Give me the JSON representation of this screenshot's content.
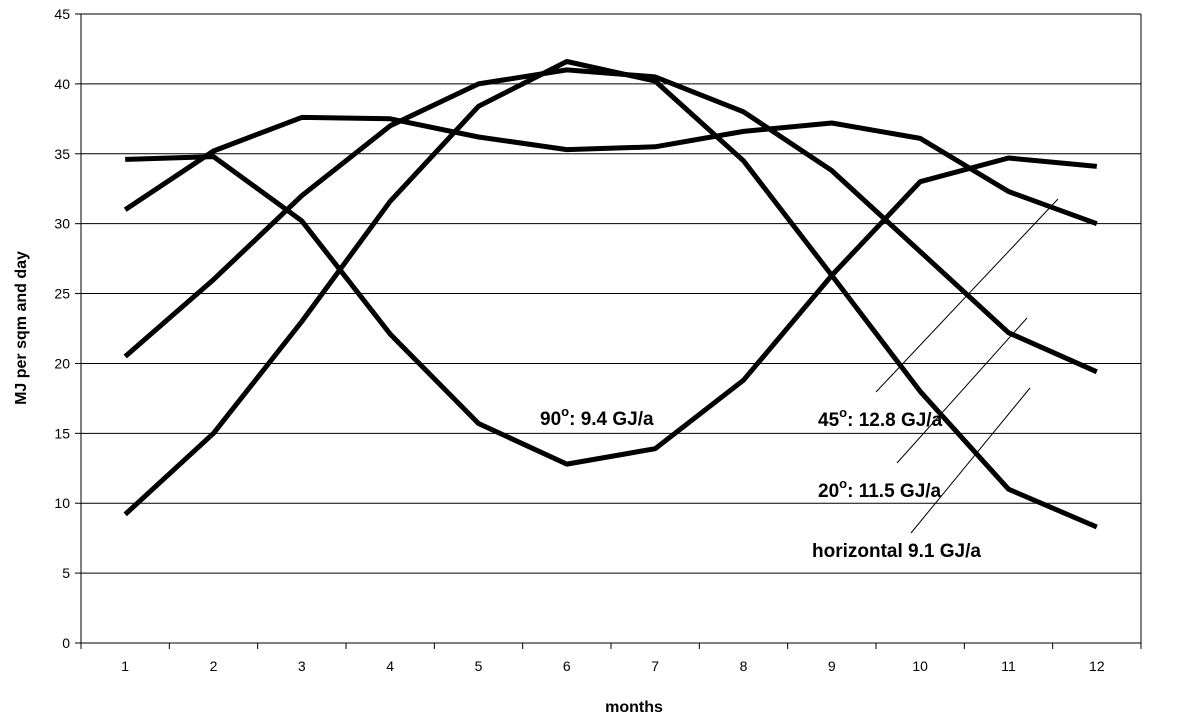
{
  "chart_data": {
    "type": "line",
    "xlabel": "months",
    "ylabel": "MJ per sqm and day",
    "categories": [
      "1",
      "2",
      "3",
      "4",
      "5",
      "6",
      "7",
      "8",
      "9",
      "10",
      "11",
      "12"
    ],
    "ylim": [
      0,
      45
    ],
    "yticks": [
      0,
      5,
      10,
      15,
      20,
      25,
      30,
      35,
      40,
      45
    ],
    "grid": "horizontal",
    "legend": "none",
    "line_color": "#000000",
    "series": [
      {
        "values": [
          34.6,
          34.8,
          30.2,
          22.1,
          15.7,
          12.8,
          13.9,
          18.8,
          26.3,
          33.0,
          34.7,
          34.1
        ]
      },
      {
        "values": [
          31.0,
          35.2,
          37.6,
          37.5,
          36.2,
          35.3,
          35.5,
          36.6,
          37.2,
          36.1,
          32.3,
          30.0
        ]
      },
      {
        "values": [
          20.5,
          26.0,
          32.0,
          37.0,
          40.0,
          41.0,
          40.5,
          38.0,
          33.8,
          28.0,
          22.2,
          19.4
        ]
      },
      {
        "values": [
          9.2,
          15.0,
          23.0,
          31.6,
          38.4,
          41.6,
          40.2,
          34.5,
          26.3,
          18.0,
          11.0,
          8.3
        ]
      }
    ],
    "annotations": [
      {
        "text": "90",
        "sup": "o",
        "rest": ": 9.4 GJ/a"
      },
      {
        "text": "45",
        "sup": "o",
        "rest": ": 12.8 GJ/a"
      },
      {
        "text": "20",
        "sup": "o",
        "rest": ": 11.5 GJ/a"
      },
      {
        "text": "horizontal 9.1 GJ/a",
        "sup": "",
        "rest": ""
      }
    ]
  }
}
